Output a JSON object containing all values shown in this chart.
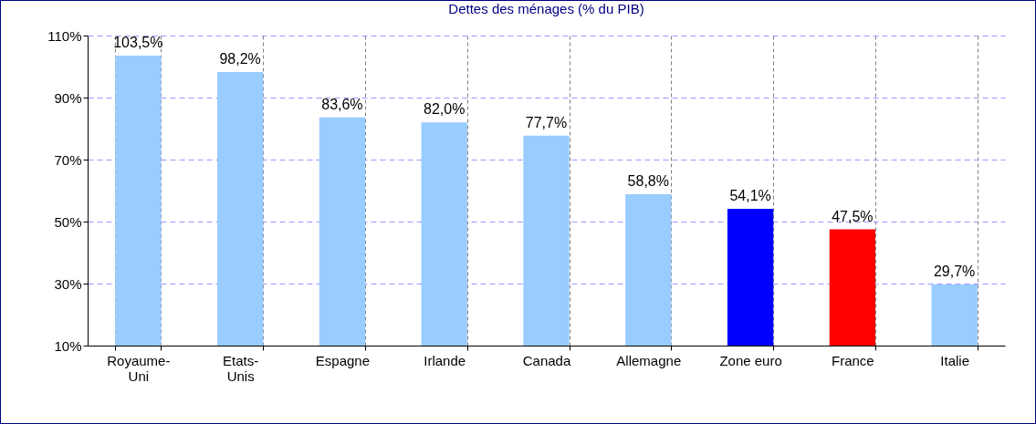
{
  "chart_data": {
    "type": "bar",
    "title": "Dettes des ménages (% du PIB)",
    "categories": [
      "Royaume-Uni",
      "Etats-Unis",
      "Espagne",
      "Irlande",
      "Canada",
      "Allemagne",
      "Zone euro",
      "France",
      "Italie"
    ],
    "values": [
      103.5,
      98.2,
      83.6,
      82.0,
      77.7,
      58.8,
      54.1,
      47.5,
      29.7
    ],
    "value_labels": [
      "103,5%",
      "98,2%",
      "83,6%",
      "82,0%",
      "77,7%",
      "58,8%",
      "54,1%",
      "47,5%",
      "29,7%"
    ],
    "colors": [
      "#99ccff",
      "#99ccff",
      "#99ccff",
      "#99ccff",
      "#99ccff",
      "#99ccff",
      "#0000ff",
      "#ff0000",
      "#99ccff"
    ],
    "ylim": [
      10,
      110
    ],
    "yticks": [
      {
        "value": 10,
        "label": "10%"
      },
      {
        "value": 30,
        "label": "30%"
      },
      {
        "value": 50,
        "label": "50%"
      },
      {
        "value": 70,
        "label": "70%"
      },
      {
        "value": 90,
        "label": "90%"
      },
      {
        "value": 110,
        "label": "110%"
      }
    ],
    "grid": true
  }
}
